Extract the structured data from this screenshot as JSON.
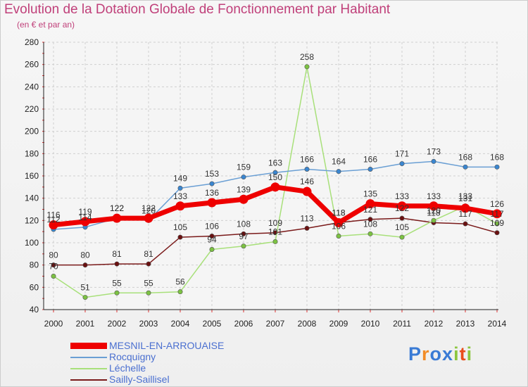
{
  "title": "Evolution de la Dotation Globale de Fonctionnement par Habitant",
  "subtitle": "(en € et par an)",
  "logo": {
    "text": "Proxiti",
    "letters": [
      "P",
      "r",
      "o",
      "x",
      "i",
      "t",
      "i"
    ],
    "colors": [
      "#3a7bd5",
      "#f28c28",
      "#3a7bd5",
      "#3a7bd5",
      "#8cc63f",
      "#e94e1b",
      "#8cc63f"
    ]
  },
  "chart_data": {
    "type": "line",
    "title": "Evolution de la Dotation Globale de Fonctionnement par Habitant",
    "subtitle": "(en € et par an)",
    "xlabel": "",
    "ylabel": "",
    "ylim": [
      40,
      280
    ],
    "yticks": [
      40,
      60,
      80,
      100,
      120,
      140,
      160,
      180,
      200,
      220,
      240,
      260,
      280
    ],
    "x": [
      "2000",
      "2001",
      "2002",
      "2003",
      "2004",
      "2005",
      "2006",
      "2007",
      "2008",
      "2009",
      "2010",
      "2011",
      "2012",
      "2013",
      "2014"
    ],
    "legend_position": "bottom-left",
    "series": [
      {
        "name": "Sailly-Saillisel",
        "color": "#7a1a1a",
        "marker": "#6a1010",
        "width": 1.5,
        "values": [
          80,
          80,
          81,
          81,
          105,
          106,
          108,
          109,
          113,
          118,
          121,
          122,
          118,
          117,
          109
        ]
      },
      {
        "name": "Léchelle",
        "color": "#a8e07a",
        "marker": "#7cc242",
        "width": 1.5,
        "values": [
          70,
          51,
          55,
          55,
          56,
          94,
          97,
          101,
          258,
          106,
          108,
          105,
          120,
          133,
          117
        ]
      },
      {
        "name": "Rocquigny",
        "color": "#6a9fd4",
        "marker": "#3a86d0",
        "width": 1.5,
        "values": [
          112,
          114,
          122,
          120,
          149,
          153,
          159,
          163,
          166,
          164,
          166,
          171,
          173,
          168,
          168
        ]
      },
      {
        "name": "MESNIL-EN-ARROUAISE",
        "color": "#ee0000",
        "marker": "#ee0000",
        "width": 7,
        "values": [
          116,
          119,
          122,
          122,
          133,
          136,
          139,
          150,
          146,
          118,
          135,
          133,
          133,
          131,
          126
        ]
      }
    ]
  }
}
